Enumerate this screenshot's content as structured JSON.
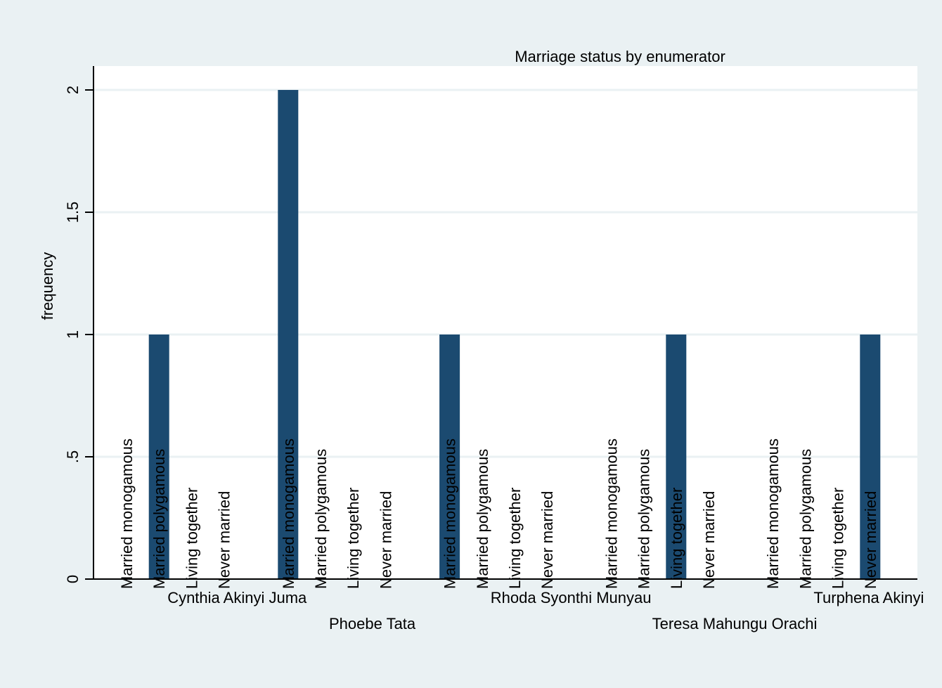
{
  "chart_data": {
    "type": "bar",
    "title": "Marriage status by enumerator",
    "ylabel": "frequency",
    "xlabel": "",
    "ylim": [
      0,
      2
    ],
    "yticks": [
      {
        "value": 0,
        "label": "0"
      },
      {
        "value": 0.5,
        "label": ".5"
      },
      {
        "value": 1,
        "label": "1"
      },
      {
        "value": 1.5,
        "label": "1.5"
      },
      {
        "value": 2,
        "label": "2"
      }
    ],
    "grid": true,
    "categories": [
      "Married monogamous",
      "Married polygamous",
      "Living together",
      "Never married"
    ],
    "groups": [
      {
        "name": "Cynthia Akinyi Juma",
        "values": [
          0,
          1,
          0,
          0
        ]
      },
      {
        "name": "Phoebe Tata",
        "values": [
          2,
          0,
          0,
          0
        ]
      },
      {
        "name": "Rhoda Syonthi Munyau",
        "values": [
          1,
          0,
          0,
          0
        ]
      },
      {
        "name": "Teresa Mahungu Orachi",
        "values": [
          0,
          0,
          1,
          0
        ]
      },
      {
        "name": "Turphena Akinyi",
        "values": [
          0,
          0,
          0,
          1
        ]
      }
    ],
    "colors": {
      "bar": "#1b4a70",
      "background": "#eaf1f3",
      "plot_area": "#ffffff",
      "grid": "#eaf1f3"
    }
  }
}
